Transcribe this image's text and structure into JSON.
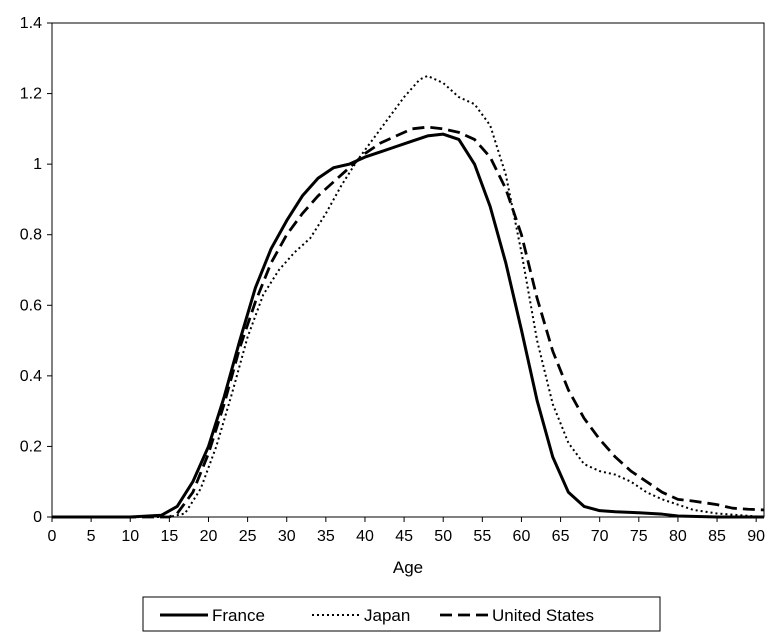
{
  "chart_data": {
    "type": "line",
    "title": "",
    "xlabel": "Age",
    "ylabel": "",
    "xlim": [
      0,
      90
    ],
    "ylim": [
      0,
      1.4
    ],
    "x_ticks": [
      "0",
      "5",
      "10",
      "15",
      "20",
      "25",
      "30",
      "35",
      "40",
      "45",
      "50",
      "55",
      "60",
      "65",
      "70",
      "75",
      "80",
      "85",
      "90"
    ],
    "y_ticks": [
      "0",
      "0.2",
      "0.4",
      "0.6",
      "0.8",
      "1",
      "1.2",
      "1.4"
    ],
    "grid": false,
    "legend_position": "bottom",
    "series": [
      {
        "name": "France",
        "style": "solid",
        "color": "#000000",
        "points": [
          [
            0,
            0
          ],
          [
            10,
            0
          ],
          [
            14,
            0.005
          ],
          [
            16,
            0.03
          ],
          [
            18,
            0.1
          ],
          [
            20,
            0.2
          ],
          [
            22,
            0.34
          ],
          [
            24,
            0.5
          ],
          [
            26,
            0.65
          ],
          [
            28,
            0.76
          ],
          [
            30,
            0.84
          ],
          [
            32,
            0.91
          ],
          [
            34,
            0.96
          ],
          [
            36,
            0.99
          ],
          [
            38,
            1.0
          ],
          [
            40,
            1.02
          ],
          [
            42,
            1.035
          ],
          [
            44,
            1.05
          ],
          [
            46,
            1.065
          ],
          [
            48,
            1.08
          ],
          [
            50,
            1.085
          ],
          [
            52,
            1.07
          ],
          [
            54,
            1.0
          ],
          [
            56,
            0.88
          ],
          [
            58,
            0.72
          ],
          [
            60,
            0.53
          ],
          [
            62,
            0.33
          ],
          [
            64,
            0.17
          ],
          [
            66,
            0.07
          ],
          [
            68,
            0.03
          ],
          [
            70,
            0.018
          ],
          [
            72,
            0.015
          ],
          [
            75,
            0.012
          ],
          [
            78,
            0.008
          ],
          [
            80,
            0.003
          ],
          [
            85,
            0
          ],
          [
            91,
            0
          ]
        ]
      },
      {
        "name": "Japan",
        "style": "dotted",
        "color": "#000000",
        "points": [
          [
            0,
            0
          ],
          [
            15,
            0
          ],
          [
            17,
            0.01
          ],
          [
            19,
            0.08
          ],
          [
            21,
            0.2
          ],
          [
            23,
            0.35
          ],
          [
            25,
            0.51
          ],
          [
            27,
            0.63
          ],
          [
            29,
            0.7
          ],
          [
            31,
            0.75
          ],
          [
            33,
            0.79
          ],
          [
            35,
            0.86
          ],
          [
            37,
            0.94
          ],
          [
            39,
            1.01
          ],
          [
            41,
            1.07
          ],
          [
            43,
            1.13
          ],
          [
            45,
            1.19
          ],
          [
            47,
            1.24
          ],
          [
            48,
            1.25
          ],
          [
            50,
            1.23
          ],
          [
            52,
            1.19
          ],
          [
            54,
            1.17
          ],
          [
            56,
            1.11
          ],
          [
            58,
            0.97
          ],
          [
            60,
            0.75
          ],
          [
            62,
            0.5
          ],
          [
            64,
            0.32
          ],
          [
            66,
            0.21
          ],
          [
            68,
            0.15
          ],
          [
            70,
            0.13
          ],
          [
            72,
            0.12
          ],
          [
            74,
            0.1
          ],
          [
            76,
            0.07
          ],
          [
            78,
            0.05
          ],
          [
            80,
            0.035
          ],
          [
            82,
            0.02
          ],
          [
            85,
            0.01
          ],
          [
            88,
            0.005
          ],
          [
            91,
            0
          ]
        ]
      },
      {
        "name": "United States",
        "style": "dashed",
        "color": "#000000",
        "points": [
          [
            0,
            0
          ],
          [
            15,
            0
          ],
          [
            16,
            0.01
          ],
          [
            18,
            0.07
          ],
          [
            20,
            0.18
          ],
          [
            22,
            0.32
          ],
          [
            24,
            0.48
          ],
          [
            26,
            0.61
          ],
          [
            28,
            0.72
          ],
          [
            30,
            0.8
          ],
          [
            32,
            0.86
          ],
          [
            34,
            0.91
          ],
          [
            36,
            0.95
          ],
          [
            38,
            0.99
          ],
          [
            40,
            1.03
          ],
          [
            42,
            1.06
          ],
          [
            44,
            1.08
          ],
          [
            46,
            1.1
          ],
          [
            48,
            1.105
          ],
          [
            50,
            1.1
          ],
          [
            52,
            1.09
          ],
          [
            54,
            1.07
          ],
          [
            56,
            1.02
          ],
          [
            58,
            0.93
          ],
          [
            60,
            0.8
          ],
          [
            62,
            0.62
          ],
          [
            64,
            0.47
          ],
          [
            66,
            0.36
          ],
          [
            68,
            0.28
          ],
          [
            70,
            0.22
          ],
          [
            72,
            0.17
          ],
          [
            74,
            0.13
          ],
          [
            76,
            0.1
          ],
          [
            78,
            0.07
          ],
          [
            80,
            0.05
          ],
          [
            82,
            0.045
          ],
          [
            85,
            0.035
          ],
          [
            87,
            0.025
          ],
          [
            89,
            0.022
          ],
          [
            91,
            0.02
          ]
        ]
      }
    ]
  }
}
